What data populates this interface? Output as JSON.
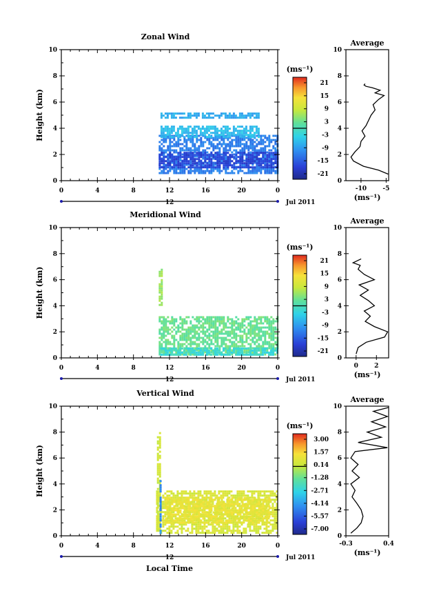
{
  "chart_data": [
    {
      "type": "heatmap",
      "title": "Zonal Wind",
      "ylabel": "Height (km)",
      "xlabel": "",
      "x_ticks": [
        "0",
        "4",
        "8",
        "12",
        "16",
        "20",
        "0"
      ],
      "y_ticks": [
        "0",
        "2",
        "4",
        "6",
        "8",
        "10"
      ],
      "xlim": [
        0,
        24
      ],
      "ylim": [
        0,
        10
      ],
      "day_label": "12",
      "month_label": "Jul 2011",
      "colorbar": {
        "unit_label": "(ms⁻¹)",
        "ticks": [
          "21",
          "15",
          "9",
          "3",
          "-3",
          "-9",
          "-15",
          "-21"
        ],
        "min": -24,
        "max": 24
      },
      "fields": [
        {
          "x": [
            10.8,
            24.0
          ],
          "y": [
            0.5,
            3.5
          ],
          "value": -12
        },
        {
          "x": [
            10.8,
            24.0
          ],
          "y": [
            1.0,
            2.2
          ],
          "value": -18
        },
        {
          "x": [
            11.0,
            22.0
          ],
          "y": [
            3.3,
            4.2
          ],
          "value": -6
        },
        {
          "x": [
            11.0,
            22.0
          ],
          "y": [
            4.8,
            5.2
          ],
          "value": -8
        }
      ],
      "average_profile": {
        "title": "Average",
        "unit_label": "(ms⁻¹)",
        "x_ticks": [
          "-10",
          "-5"
        ],
        "xlim": [
          -13,
          -4.5
        ],
        "y_ticks": [
          "0",
          "2",
          "4",
          "6",
          "8",
          "10"
        ],
        "x": [
          -4.6,
          -6.5,
          -9.5,
          -11.5,
          -12.0,
          -11.2,
          -10.2,
          -10.0,
          -9.2,
          -9.8,
          -9.0,
          -8.5,
          -8.0,
          -7.2,
          -7.6,
          -6.5,
          -5.4,
          -7.2,
          -6.2,
          -7.8,
          -9.0,
          -9.4,
          -9.2
        ],
        "y": [
          0.5,
          0.8,
          1.1,
          1.5,
          1.8,
          2.2,
          2.6,
          3.0,
          3.4,
          3.8,
          4.2,
          4.6,
          5.0,
          5.4,
          5.8,
          6.2,
          6.5,
          6.7,
          6.9,
          7.1,
          7.2,
          7.3,
          7.4
        ]
      }
    },
    {
      "type": "heatmap",
      "title": "Meridional Wind",
      "ylabel": "Height (km)",
      "xlabel": "",
      "x_ticks": [
        "0",
        "4",
        "8",
        "12",
        "16",
        "20",
        "0"
      ],
      "y_ticks": [
        "0",
        "2",
        "4",
        "6",
        "8",
        "10"
      ],
      "xlim": [
        0,
        24
      ],
      "ylim": [
        0,
        10
      ],
      "day_label": "12",
      "month_label": "Jul 2011",
      "colorbar": {
        "unit_label": "(ms⁻¹)",
        "ticks": [
          "21",
          "15",
          "9",
          "3",
          "-3",
          "-9",
          "-15",
          "-21"
        ],
        "min": -24,
        "max": 24
      },
      "fields": [
        {
          "x": [
            10.8,
            24.0
          ],
          "y": [
            0.3,
            3.2
          ],
          "value": 3
        },
        {
          "x": [
            11.0,
            24.0
          ],
          "y": [
            0.2,
            0.8
          ],
          "value": -2
        },
        {
          "x": [
            10.8,
            11.2
          ],
          "y": [
            4.0,
            7.0
          ],
          "value": 6
        }
      ],
      "average_profile": {
        "title": "Average",
        "unit_label": "(ms⁻¹)",
        "x_ticks": [
          "0",
          "2"
        ],
        "xlim": [
          -1,
          3.2
        ],
        "y_ticks": [
          "0",
          "2",
          "4",
          "6",
          "8",
          "10"
        ],
        "x": [
          0.0,
          0.2,
          1.0,
          2.8,
          3.1,
          1.8,
          0.9,
          1.4,
          0.8,
          1.8,
          1.2,
          0.4,
          1.2,
          0.3,
          1.8,
          0.8,
          0.2,
          0.4,
          -0.3,
          0.5
        ],
        "y": [
          0.3,
          0.8,
          1.2,
          1.6,
          2.0,
          2.4,
          2.8,
          3.2,
          3.6,
          4.0,
          4.4,
          4.8,
          5.2,
          5.6,
          6.0,
          6.4,
          6.8,
          7.1,
          7.3,
          7.6
        ]
      }
    },
    {
      "type": "heatmap",
      "title": "Vertical Wind",
      "ylabel": "Height (km)",
      "xlabel": "Local Time",
      "x_ticks": [
        "0",
        "4",
        "8",
        "12",
        "16",
        "20",
        "0"
      ],
      "y_ticks": [
        "0",
        "2",
        "4",
        "6",
        "8",
        "10"
      ],
      "xlim": [
        0,
        24
      ],
      "ylim": [
        0,
        10
      ],
      "day_label": "12",
      "month_label": "Jul 2011",
      "colorbar": {
        "unit_label": "(ms⁻¹)",
        "ticks": [
          "3.00",
          "1.57",
          "0.14",
          "-1.28",
          "-2.71",
          "-4.14",
          "-5.57",
          "-7.00"
        ],
        "min": -7.7,
        "max": 3.7
      },
      "fields": [
        {
          "x": [
            10.5,
            24.0
          ],
          "y": [
            0.2,
            3.5
          ],
          "value": 0.5
        },
        {
          "x": [
            11.5,
            23.0
          ],
          "y": [
            1.0,
            3.0
          ],
          "value": 1.0
        },
        {
          "x": [
            10.6,
            11.0
          ],
          "y": [
            0.2,
            8.0
          ],
          "value": 0.3
        },
        {
          "x": [
            10.9,
            11.1
          ],
          "y": [
            0.3,
            4.3
          ],
          "value": -4.5
        }
      ],
      "average_profile": {
        "title": "Average",
        "unit_label": "(ms⁻¹)",
        "x_ticks": [
          "-0.3",
          "0.4"
        ],
        "xlim": [
          -0.3,
          0.4
        ],
        "y_ticks": [
          "0",
          "2",
          "4",
          "6",
          "8",
          "10"
        ],
        "x": [
          -0.22,
          -0.12,
          -0.05,
          -0.02,
          -0.05,
          -0.12,
          -0.2,
          -0.15,
          -0.22,
          -0.08,
          -0.2,
          -0.1,
          -0.22,
          -0.15,
          0.38,
          -0.1,
          0.28,
          0.05,
          0.35,
          0.12,
          0.38,
          0.15,
          0.4
        ],
        "y": [
          0.2,
          0.6,
          1.0,
          1.5,
          2.0,
          2.5,
          3.0,
          3.5,
          4.0,
          4.5,
          5.0,
          5.5,
          6.0,
          6.5,
          6.8,
          7.2,
          7.6,
          8.0,
          8.4,
          8.8,
          9.2,
          9.6,
          9.9
        ]
      }
    }
  ]
}
